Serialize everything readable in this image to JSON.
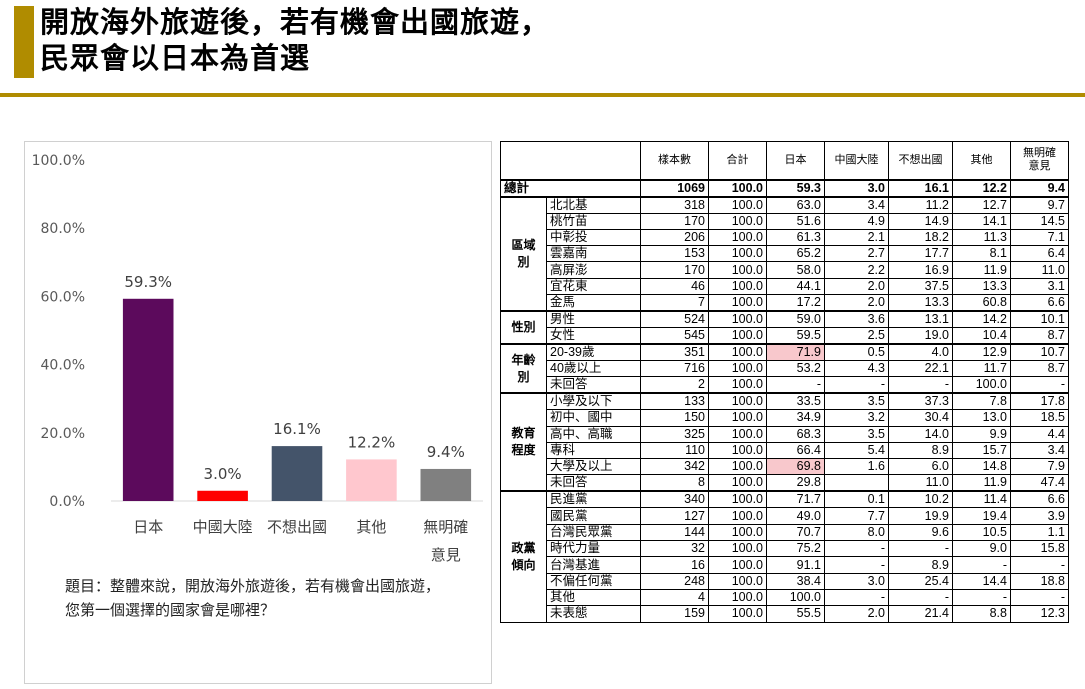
{
  "title": {
    "line1": "開放海外旅遊後，若有機會出國旅遊，",
    "line2": "民眾會以日本為首選"
  },
  "question": {
    "line1": "題目：整體來說，開放海外旅遊後，若有機會出國旅遊，",
    "line2": "您第一個選擇的國家會是哪裡？"
  },
  "chart_data": {
    "type": "bar",
    "categories": [
      "日本",
      "中國大陸",
      "不想出國",
      "其他",
      "無明確意見"
    ],
    "category_lines": [
      [
        "日本"
      ],
      [
        "中國大陸"
      ],
      [
        "不想出國"
      ],
      [
        "其他"
      ],
      [
        "無明確",
        "意見"
      ]
    ],
    "values": [
      59.3,
      3.0,
      16.1,
      12.2,
      9.4
    ],
    "value_labels": [
      "59.3%",
      "3.0%",
      "16.1%",
      "12.2%",
      "9.4%"
    ],
    "colors": [
      "#5c0a5c",
      "#ff0000",
      "#44546a",
      "#ffc7ce",
      "#808080"
    ],
    "ylim": [
      0,
      100
    ],
    "yticks": [
      0,
      20,
      40,
      60,
      80,
      100
    ],
    "ytick_labels": [
      "0.0%",
      "20.0%",
      "40.0%",
      "60.0%",
      "80.0%",
      "100.0%"
    ],
    "title": "",
    "xlabel": "",
    "ylabel": "",
    "grid": false,
    "legend": "none"
  },
  "table": {
    "headers": [
      "樣本數",
      "合計",
      "日本",
      "中國大陸",
      "不想出國",
      "其他",
      "無明確意見"
    ],
    "header_lines": [
      [
        "樣本數"
      ],
      [
        "合計"
      ],
      [
        "日本"
      ],
      [
        "中國大陸"
      ],
      [
        "不想出國"
      ],
      [
        "其他"
      ],
      [
        "無明確",
        "意見"
      ]
    ],
    "total": {
      "label": "總計",
      "values": [
        "1069",
        "100.0",
        "59.3",
        "3.0",
        "16.1",
        "12.2",
        "9.4"
      ]
    },
    "groups": [
      {
        "lines": [
          "區域",
          "別"
        ],
        "rows": [
          {
            "label": "北北基",
            "values": [
              "318",
              "100.0",
              "63.0",
              "3.4",
              "11.2",
              "12.7",
              "9.7"
            ]
          },
          {
            "label": "桃竹苗",
            "values": [
              "170",
              "100.0",
              "51.6",
              "4.9",
              "14.9",
              "14.1",
              "14.5"
            ]
          },
          {
            "label": "中彰投",
            "values": [
              "206",
              "100.0",
              "61.3",
              "2.1",
              "18.2",
              "11.3",
              "7.1"
            ]
          },
          {
            "label": "雲嘉南",
            "values": [
              "153",
              "100.0",
              "65.2",
              "2.7",
              "17.7",
              "8.1",
              "6.4"
            ]
          },
          {
            "label": "高屏澎",
            "values": [
              "170",
              "100.0",
              "58.0",
              "2.2",
              "16.9",
              "11.9",
              "11.0"
            ]
          },
          {
            "label": "宜花東",
            "values": [
              "46",
              "100.0",
              "44.1",
              "2.0",
              "37.5",
              "13.3",
              "3.1"
            ]
          },
          {
            "label": "金馬",
            "values": [
              "7",
              "100.0",
              "17.2",
              "2.0",
              "13.3",
              "60.8",
              "6.6"
            ]
          }
        ]
      },
      {
        "lines": [
          "性別"
        ],
        "rows": [
          {
            "label": "男性",
            "values": [
              "524",
              "100.0",
              "59.0",
              "3.6",
              "13.1",
              "14.2",
              "10.1"
            ]
          },
          {
            "label": "女性",
            "values": [
              "545",
              "100.0",
              "59.5",
              "2.5",
              "19.0",
              "10.4",
              "8.7"
            ]
          }
        ]
      },
      {
        "lines": [
          "年齡",
          "別"
        ],
        "rows": [
          {
            "label": "20-39歲",
            "values": [
              "351",
              "100.0",
              "71.9",
              "0.5",
              "4.0",
              "12.9",
              "10.7"
            ],
            "hl": true
          },
          {
            "label": "40歲以上",
            "values": [
              "716",
              "100.0",
              "53.2",
              "4.3",
              "22.1",
              "11.7",
              "8.7"
            ]
          },
          {
            "label": "未回答",
            "values": [
              "2",
              "100.0",
              "-",
              "-",
              "-",
              "100.0",
              "-"
            ]
          }
        ]
      },
      {
        "lines": [
          "教育",
          "程度"
        ],
        "rows": [
          {
            "label": "小學及以下",
            "values": [
              "133",
              "100.0",
              "33.5",
              "3.5",
              "37.3",
              "7.8",
              "17.8"
            ]
          },
          {
            "label": "初中、國中",
            "values": [
              "150",
              "100.0",
              "34.9",
              "3.2",
              "30.4",
              "13.0",
              "18.5"
            ]
          },
          {
            "label": "高中、高職",
            "values": [
              "325",
              "100.0",
              "68.3",
              "3.5",
              "14.0",
              "9.9",
              "4.4"
            ]
          },
          {
            "label": "專科",
            "values": [
              "110",
              "100.0",
              "66.4",
              "5.4",
              "8.9",
              "15.7",
              "3.4"
            ]
          },
          {
            "label": "大學及以上",
            "values": [
              "342",
              "100.0",
              "69.8",
              "1.6",
              "6.0",
              "14.8",
              "7.9"
            ],
            "hl": true
          },
          {
            "label": "未回答",
            "values": [
              "8",
              "100.0",
              "29.8",
              "",
              "11.0",
              "11.9",
              "47.4"
            ]
          }
        ]
      },
      {
        "lines": [
          "政黨",
          "傾向"
        ],
        "rows": [
          {
            "label": "民進黨",
            "values": [
              "340",
              "100.0",
              "71.7",
              "0.1",
              "10.2",
              "11.4",
              "6.6"
            ]
          },
          {
            "label": "國民黨",
            "values": [
              "127",
              "100.0",
              "49.0",
              "7.7",
              "19.9",
              "19.4",
              "3.9"
            ]
          },
          {
            "label": "台灣民眾黨",
            "values": [
              "144",
              "100.0",
              "70.7",
              "8.0",
              "9.6",
              "10.5",
              "1.1"
            ]
          },
          {
            "label": "時代力量",
            "values": [
              "32",
              "100.0",
              "75.2",
              "-",
              "-",
              "9.0",
              "15.8"
            ]
          },
          {
            "label": "台灣基進",
            "values": [
              "16",
              "100.0",
              "91.1",
              "-",
              "8.9",
              "-",
              "-"
            ]
          },
          {
            "label": "不偏任何黨",
            "values": [
              "248",
              "100.0",
              "38.4",
              "3.0",
              "25.4",
              "14.4",
              "18.8"
            ]
          },
          {
            "label": "其他",
            "values": [
              "4",
              "100.0",
              "100.0",
              "-",
              "-",
              "-",
              "-"
            ]
          },
          {
            "label": "未表態",
            "values": [
              "159",
              "100.0",
              "55.5",
              "2.0",
              "21.4",
              "8.8",
              "12.3"
            ]
          }
        ]
      }
    ]
  }
}
